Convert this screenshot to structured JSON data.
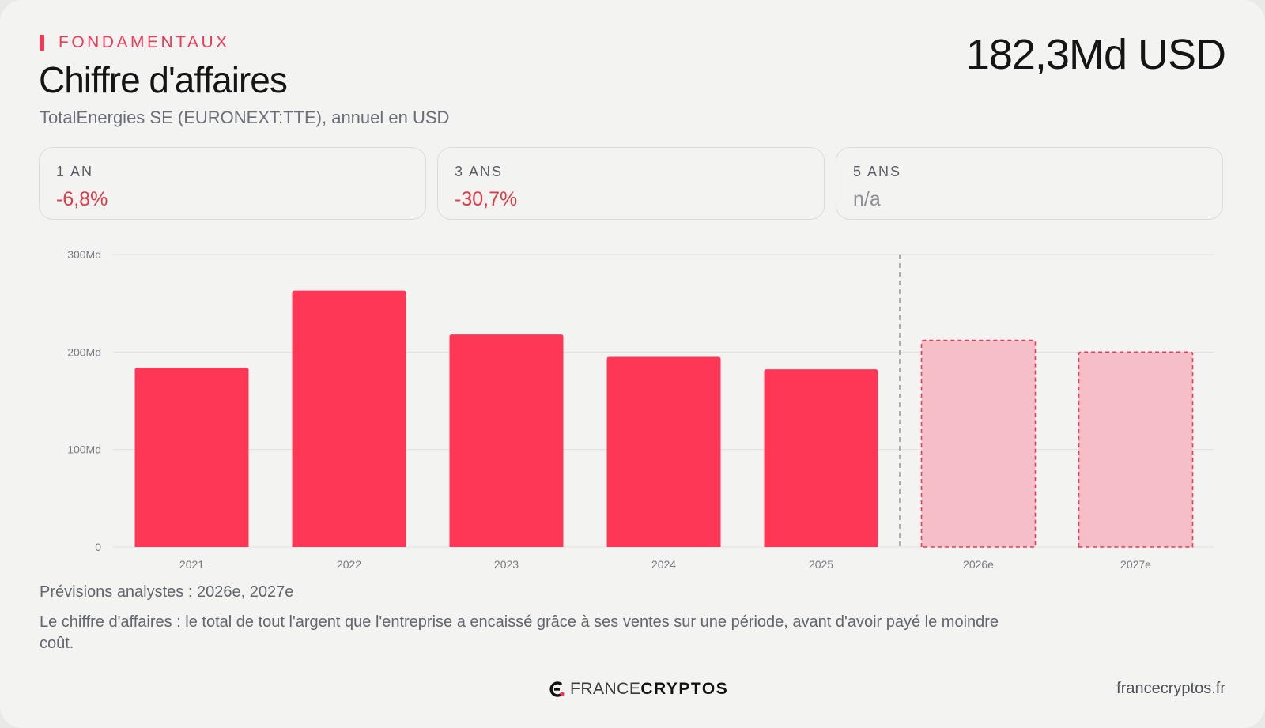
{
  "header": {
    "section": "FONDAMENTAUX",
    "title": "Chiffre d'affaires",
    "subtitle": "TotalEnergies SE (EURONEXT:TTE), annuel en USD",
    "headline_value": "182,3Md USD"
  },
  "stats": [
    {
      "label": "1 AN",
      "value": "-6,8%"
    },
    {
      "label": "3 ANS",
      "value": "-30,7%"
    },
    {
      "label": "5 ANS",
      "value": "n/a"
    }
  ],
  "chart_data": {
    "type": "bar",
    "categories": [
      "2021",
      "2022",
      "2023",
      "2024",
      "2025",
      "2026e",
      "2027e"
    ],
    "values": [
      184,
      263,
      218,
      195,
      182.3,
      212,
      200
    ],
    "estimate_categories": [
      "2026e",
      "2027e"
    ],
    "ylim": [
      0,
      300
    ],
    "yticks": [
      0,
      100,
      200,
      300
    ],
    "ytick_labels": [
      "0",
      "100Md",
      "200Md",
      "300Md"
    ],
    "grid": true,
    "colors": {
      "actual": "#ff3757",
      "estimate_fill": "#f6bfc7",
      "estimate_border": "#ee3a57"
    }
  },
  "footer": {
    "forecast_note": "Prévisions analystes : 2026e, 2027e",
    "description": "Le chiffre d'affaires : le total de tout l'argent que l'entreprise a encaissé grâce à ses ventes sur une période, avant d'avoir payé le moindre coût.",
    "brand_light": "FRANCE",
    "brand_bold": "CRYPTOS",
    "site": "francecryptos.fr"
  }
}
